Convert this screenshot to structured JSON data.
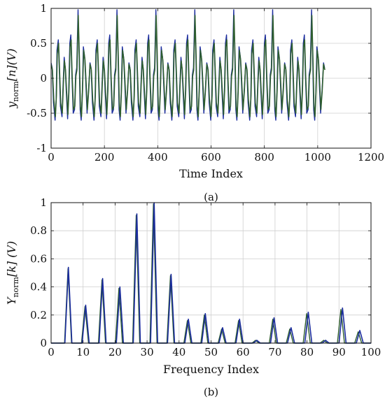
{
  "chart_data": [
    {
      "type": "line",
      "panel_label": "(a)",
      "xlabel": "Time Index",
      "ylabel": {
        "main": "y",
        "subscript": "norm",
        "rest": "[n](V)"
      },
      "xlim": [
        0,
        1200
      ],
      "ylim": [
        -1,
        1
      ],
      "xticks": [
        0,
        200,
        400,
        600,
        800,
        1000,
        1200
      ],
      "yticks": [
        -1,
        -0.5,
        0,
        0.5,
        1
      ],
      "grid": true,
      "series": [
        {
          "color": "#1b2c9e",
          "x_range": [
            0,
            1029
          ],
          "period": 146,
          "pattern": [
            [
              0,
              0.22
            ],
            [
              4,
              0.15
            ],
            [
              9,
              -0.35
            ],
            [
              15,
              -0.6
            ],
            [
              19,
              -0.3
            ],
            [
              22,
              0.4
            ],
            [
              27,
              0.55
            ],
            [
              31,
              0.1
            ],
            [
              35,
              -0.4
            ],
            [
              41,
              -0.55
            ],
            [
              45,
              -0.1
            ],
            [
              49,
              0.3
            ],
            [
              53,
              0.15
            ],
            [
              57,
              -0.2
            ],
            [
              62,
              -0.58
            ],
            [
              66,
              -0.2
            ],
            [
              70,
              0.5
            ],
            [
              74,
              0.62
            ],
            [
              78,
              0.05
            ],
            [
              83,
              -0.5
            ],
            [
              88,
              -0.45
            ],
            [
              92,
              0.05
            ],
            [
              96,
              0.15
            ],
            [
              101,
              0.98
            ],
            [
              105,
              0.35
            ],
            [
              109,
              -0.45
            ],
            [
              113,
              -0.6
            ],
            [
              117,
              -0.2
            ],
            [
              121,
              0.45
            ],
            [
              126,
              0.3
            ],
            [
              130,
              -0.05
            ],
            [
              135,
              -0.5
            ],
            [
              140,
              -0.2
            ],
            [
              146,
              0.22
            ]
          ]
        },
        {
          "color": "#2e5e2e",
          "x_range": [
            0,
            1029
          ],
          "period": 146,
          "pattern": [
            [
              0,
              0.2
            ],
            [
              5,
              0.12
            ],
            [
              10,
              -0.3
            ],
            [
              16,
              -0.55
            ],
            [
              20,
              -0.25
            ],
            [
              23,
              0.35
            ],
            [
              28,
              0.5
            ],
            [
              32,
              0.08
            ],
            [
              36,
              -0.35
            ],
            [
              42,
              -0.5
            ],
            [
              46,
              -0.08
            ],
            [
              50,
              0.25
            ],
            [
              54,
              0.12
            ],
            [
              58,
              -0.18
            ],
            [
              63,
              -0.52
            ],
            [
              67,
              -0.18
            ],
            [
              71,
              0.45
            ],
            [
              75,
              0.55
            ],
            [
              79,
              0.03
            ],
            [
              84,
              -0.45
            ],
            [
              89,
              -0.4
            ],
            [
              93,
              0.03
            ],
            [
              97,
              0.12
            ],
            [
              102,
              0.9
            ],
            [
              106,
              0.3
            ],
            [
              110,
              -0.4
            ],
            [
              114,
              -0.55
            ],
            [
              118,
              -0.18
            ],
            [
              122,
              0.4
            ],
            [
              127,
              0.26
            ],
            [
              131,
              -0.04
            ],
            [
              136,
              -0.45
            ],
            [
              141,
              -0.18
            ],
            [
              146,
              0.2
            ]
          ]
        }
      ]
    },
    {
      "type": "line",
      "panel_label": "(b)",
      "xlabel": "Frequency Index",
      "ylabel": {
        "main": "Y",
        "subscript": "norm",
        "rest": "[k] (V)"
      },
      "xlim": [
        0,
        100
      ],
      "ylim": [
        0,
        1
      ],
      "xticks": [
        0,
        10,
        20,
        30,
        40,
        50,
        60,
        70,
        80,
        90,
        100
      ],
      "yticks": [
        0,
        0.2,
        0.4,
        0.6,
        0.8,
        1
      ],
      "grid": true,
      "spike_halfwidth": 1.1,
      "series": [
        {
          "color": "#2e5e2e",
          "peaks": [
            [
              5.3,
              0.53
            ],
            [
              10.6,
              0.26
            ],
            [
              15.9,
              0.45
            ],
            [
              21.2,
              0.39
            ],
            [
              26.6,
              0.91
            ],
            [
              32,
              0.99
            ],
            [
              37.3,
              0.48
            ],
            [
              42.6,
              0.16
            ],
            [
              47.9,
              0.2
            ],
            [
              53.3,
              0.1
            ],
            [
              58.6,
              0.16
            ],
            [
              63.9,
              0.02
            ],
            [
              69.3,
              0.17
            ],
            [
              74.6,
              0.1
            ],
            [
              79.9,
              0.21
            ],
            [
              85.2,
              0.02
            ],
            [
              90.6,
              0.24
            ],
            [
              96,
              0.08
            ]
          ]
        },
        {
          "color": "#1b2c9e",
          "peaks": [
            [
              5.4,
              0.54
            ],
            [
              10.8,
              0.27
            ],
            [
              16.1,
              0.46
            ],
            [
              21.5,
              0.4
            ],
            [
              26.8,
              0.92
            ],
            [
              32.2,
              1.0
            ],
            [
              37.5,
              0.49
            ],
            [
              42.9,
              0.17
            ],
            [
              48.2,
              0.21
            ],
            [
              53.6,
              0.11
            ],
            [
              58.9,
              0.17
            ],
            [
              64.3,
              0.02
            ],
            [
              69.7,
              0.18
            ],
            [
              75.0,
              0.11
            ],
            [
              80.4,
              0.22
            ],
            [
              85.8,
              0.02
            ],
            [
              91.1,
              0.25
            ],
            [
              96.5,
              0.09
            ]
          ]
        }
      ]
    }
  ]
}
